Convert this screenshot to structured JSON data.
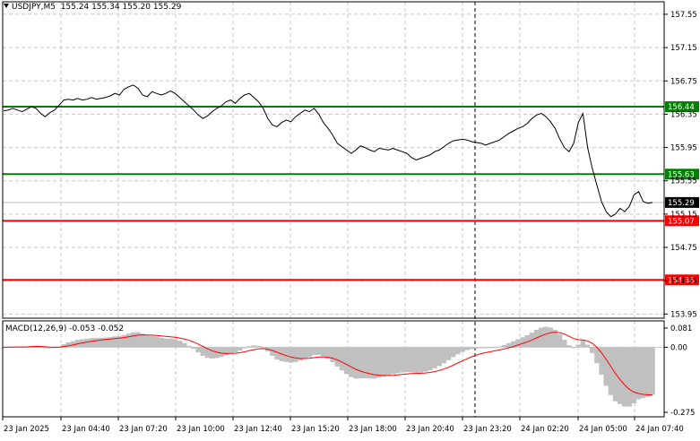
{
  "header": {
    "symbol": "USDJPY,M5",
    "open": "155.24",
    "high": "155.34",
    "low": "155.20",
    "close": "155.29"
  },
  "macd": {
    "label": "MACD(12,26,9)",
    "main": "-0.053",
    "signal": "-0.052",
    "axis_labels": [
      "0.081",
      "0.00",
      "-0.275"
    ],
    "axis_values": [
      0.081,
      0.0,
      -0.275
    ],
    "hist_color": "#c0c0c0",
    "signal_color": "#ff0000"
  },
  "chart_data": {
    "type": "line",
    "symbol": "USDJPY",
    "timeframe": "M5",
    "ylim": [
      153.9,
      157.7
    ],
    "y_ticks": [
      "157.55",
      "157.15",
      "156.75",
      "156.35",
      "155.95",
      "155.55",
      "155.15",
      "154.75",
      "154.35",
      "153.95"
    ],
    "y_tick_values": [
      157.55,
      157.15,
      156.75,
      156.35,
      155.95,
      155.55,
      155.15,
      154.75,
      154.35,
      153.95
    ],
    "x_tick_labels": [
      "23 Jan 2025",
      "23 Jan 04:40",
      "23 Jan 07:20",
      "23 Jan 10:00",
      "23 Jan 12:40",
      "23 Jan 15:20",
      "23 Jan 18:00",
      "23 Jan 20:40",
      "23 Jan 23:20",
      "24 Jan 02:20",
      "24 Jan 05:00",
      "24 Jan 07:40"
    ],
    "current_price": "155.29",
    "levels": [
      {
        "value": 156.44,
        "label": "156.44",
        "color": "#008000"
      },
      {
        "value": 155.63,
        "label": "155.63",
        "color": "#008000"
      },
      {
        "value": 155.07,
        "label": "155.07",
        "color": "#ff0000"
      },
      {
        "value": 154.36,
        "label": "154.36",
        "color": "#ff0000"
      }
    ],
    "series": [
      {
        "values": [
          156.39,
          156.4,
          156.42,
          156.4,
          156.38,
          156.41,
          156.44,
          156.42,
          156.36,
          156.32,
          156.37,
          156.4,
          156.46,
          156.52,
          156.53,
          156.52,
          156.54,
          156.52,
          156.53,
          156.55,
          156.53,
          156.54,
          156.55,
          156.57,
          156.6,
          156.58,
          156.65,
          156.68,
          156.7,
          156.66,
          156.58,
          156.56,
          156.62,
          156.6,
          156.58,
          156.6,
          156.63,
          156.6,
          156.55,
          156.5,
          156.45,
          156.4,
          156.34,
          156.3,
          156.33,
          156.38,
          156.42,
          156.45,
          156.5,
          156.52,
          156.48,
          156.54,
          156.58,
          156.6,
          156.55,
          156.5,
          156.42,
          156.3,
          156.22,
          156.2,
          156.25,
          156.28,
          156.26,
          156.32,
          156.36,
          156.4,
          156.38,
          156.42,
          156.35,
          156.25,
          156.18,
          156.1,
          156.0,
          155.96,
          155.92,
          155.88,
          155.92,
          155.97,
          155.95,
          155.92,
          155.9,
          155.94,
          155.93,
          155.92,
          155.94,
          155.92,
          155.9,
          155.88,
          155.83,
          155.8,
          155.82,
          155.84,
          155.86,
          155.9,
          155.92,
          155.96,
          156.0,
          156.03,
          156.04,
          156.05,
          156.04,
          156.02,
          156.01,
          156.0,
          155.98,
          156.0,
          156.02,
          156.04,
          156.08,
          156.12,
          156.15,
          156.18,
          156.2,
          156.24,
          156.3,
          156.34,
          156.36,
          156.32,
          156.26,
          156.18,
          156.05,
          155.95,
          155.9,
          156.0,
          156.25,
          156.36,
          155.95,
          155.7,
          155.5,
          155.3,
          155.18,
          155.12,
          155.15,
          155.22,
          155.18,
          155.24,
          155.38,
          155.42,
          155.3,
          155.28,
          155.29
        ]
      }
    ]
  }
}
